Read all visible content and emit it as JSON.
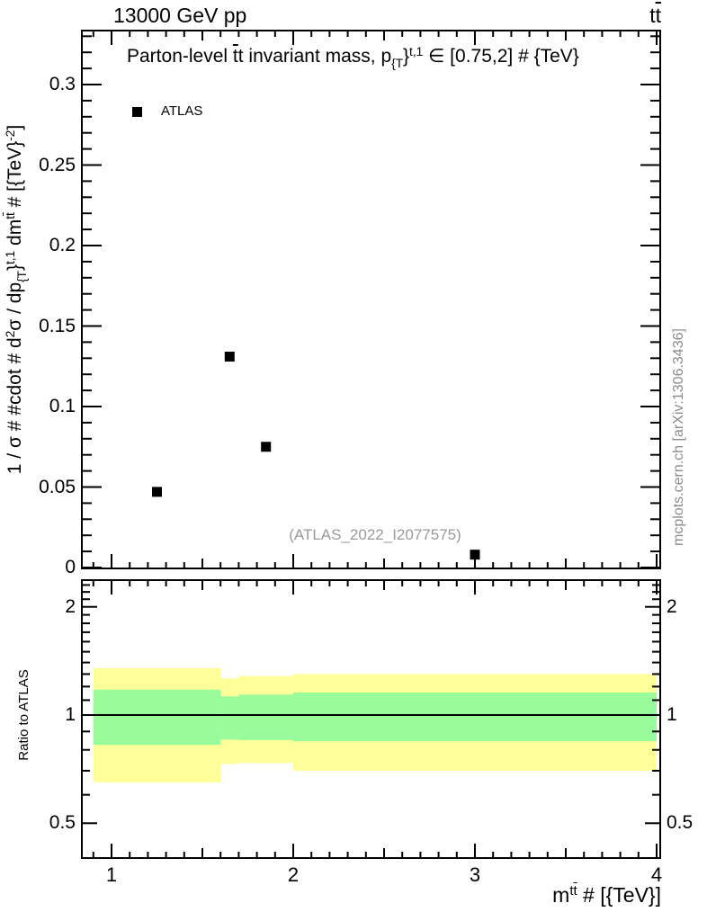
{
  "header": {
    "left": "13000 GeV pp"
  },
  "legend": {
    "marker": "black-filled-square",
    "label": "ATLAS"
  },
  "watermark": "(ATLAS_2022_I2077575)",
  "sidenote": "mcplots.cern.ch [arXiv:1306.3436]",
  "rich": {
    "corner": [
      {
        "t": "t"
      },
      {
        "bar": "t"
      }
    ],
    "title": [
      {
        "t": "Parton-level "
      },
      {
        "bar": "t"
      },
      {
        "t": "t invariant mass, p"
      },
      {
        "sub": "{T"
      },
      {
        "t": "}"
      },
      {
        "sup": "t,1"
      },
      {
        "t": " ∈ [0.75,2] # {TeV}"
      }
    ],
    "ylabel_main": [
      {
        "t": "1 / σ # #cdot # d"
      },
      {
        "sup": "2"
      },
      {
        "t": "σ / dp"
      },
      {
        "sub": "{T"
      },
      {
        "t": "}"
      },
      {
        "sup": "t,1"
      },
      {
        "t": " dm"
      },
      {
        "sup": "t"
      },
      {
        "supbar": "t"
      },
      {
        "t": " # [{TeV}"
      },
      {
        "sup": "-2"
      },
      {
        "t": "]"
      }
    ],
    "xlabel": [
      {
        "t": "m"
      },
      {
        "sup": "t"
      },
      {
        "supbar": "t"
      },
      {
        "t": " # [{TeV}]"
      }
    ]
  },
  "chart_data": {
    "type": "scatter",
    "title": "Parton-level t̅t invariant mass, p_{T}^{t,1} ∈ [0.75,2] # {TeV}",
    "top_panel": {
      "ylabel": "1 / σ # #cdot # d^2σ / dp_{T}^{t,1} dm^{tt̅} # [{TeV}^{-2}]",
      "xlim": [
        0.83,
        4.03
      ],
      "ylim": [
        0,
        0.334
      ],
      "yscale": "linear",
      "yticks_labeled": [
        0,
        0.05,
        0.1,
        0.15,
        0.2,
        0.25,
        0.3
      ],
      "y_minor_step": 0.01,
      "x_major_ticks": [
        1,
        2,
        3,
        4
      ],
      "x_medium_step": 0.5,
      "x_minor_step": 0.1,
      "grid": false,
      "legend_position": "top-left-inside",
      "series": [
        {
          "name": "ATLAS",
          "marker": "filled-square",
          "color": "#000000",
          "points": [
            {
              "x": 1.25,
              "y": 0.047
            },
            {
              "x": 1.65,
              "y": 0.131
            },
            {
              "x": 1.85,
              "y": 0.075
            },
            {
              "x": 3.0,
              "y": 0.008
            }
          ]
        }
      ]
    },
    "ratio_panel": {
      "ylabel": "Ratio to ATLAS",
      "yscale": "log",
      "ylim": [
        0.4,
        2.39
      ],
      "xlim": [
        0.83,
        4.03
      ],
      "yticks_labeled": [
        0.5,
        1,
        2
      ],
      "xticks_labeled": [
        1,
        2,
        3,
        4
      ],
      "reference_line": 1,
      "bands": [
        {
          "x": [
            0.9,
            1.6
          ],
          "outer": [
            0.65,
            1.35
          ],
          "inner": [
            0.826,
            1.176
          ]
        },
        {
          "x": [
            1.6,
            1.7
          ],
          "outer": [
            0.731,
            1.265
          ],
          "inner": [
            0.854,
            1.127
          ]
        },
        {
          "x": [
            1.7,
            2.0
          ],
          "outer": [
            0.735,
            1.284
          ],
          "inner": [
            0.852,
            1.14
          ]
        },
        {
          "x": [
            2.0,
            4.0
          ],
          "outer": [
            0.7,
            1.3
          ],
          "inner": [
            0.845,
            1.155
          ]
        }
      ],
      "colors": {
        "outer_band": "#ffff99",
        "inner_band": "#99fb99",
        "reference_line": "#000000"
      }
    }
  }
}
